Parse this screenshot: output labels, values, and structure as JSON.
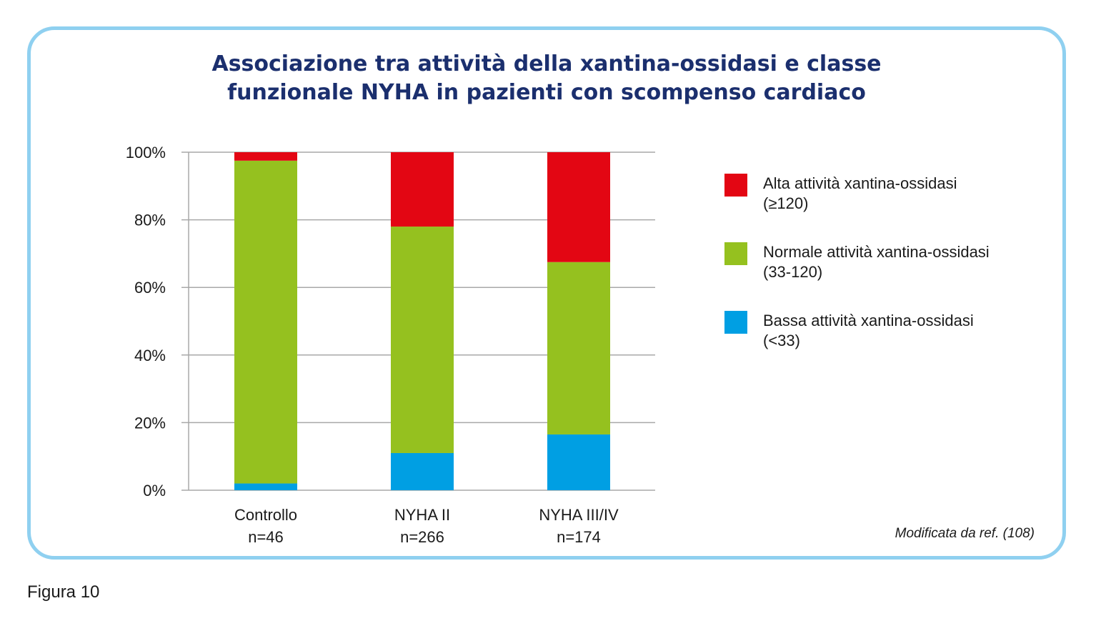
{
  "chart_data": {
    "type": "bar",
    "stacked": true,
    "title": [
      "Associazione tra attività della xantina-ossidasi e classe",
      "funzionale NYHA in pazienti con scompenso cardiaco"
    ],
    "categories": [
      {
        "label": "Controllo",
        "n": "n=46"
      },
      {
        "label": "NYHA II",
        "n": "n=266"
      },
      {
        "label": "NYHA III/IV",
        "n": "n=174"
      }
    ],
    "y_ticks": [
      "0%",
      "20%",
      "40%",
      "60%",
      "80%",
      "100%"
    ],
    "ylim": [
      0,
      100
    ],
    "grid": true,
    "legend_position": "right",
    "series": [
      {
        "name": [
          "Bassa attività xantina-ossidasi",
          "(<33)"
        ],
        "color": "#009fe3",
        "values": [
          2,
          11,
          16.5
        ]
      },
      {
        "name": [
          "Normale attività xantina-ossidasi",
          "(33-120)"
        ],
        "color": "#95c11f",
        "values": [
          95.5,
          67,
          51
        ]
      },
      {
        "name": [
          "Alta attività xantina-ossidasi",
          "(≥120)"
        ],
        "color": "#e30613",
        "values": [
          2.5,
          22,
          32.5
        ]
      }
    ]
  },
  "source": "Modificata da ref. (108)",
  "figure_caption": "Figura 10",
  "colors": {
    "frame": "#8fd0f0",
    "title": "#1b2f6e",
    "grid": "#a8a8a8"
  }
}
